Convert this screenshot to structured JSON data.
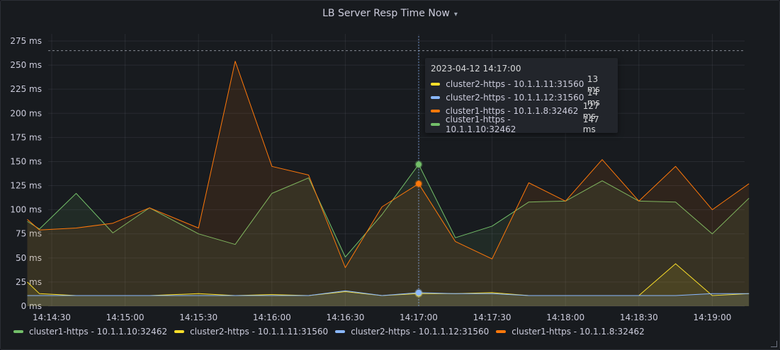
{
  "panel": {
    "title": "LB Server Resp Time Now"
  },
  "tooltip": {
    "time": "2023-04-12 14:17:00",
    "rows": [
      {
        "name": "cluster2-https - 10.1.1.11:31560",
        "value": "13 ms",
        "color": "#fade2a"
      },
      {
        "name": "cluster2-https - 10.1.1.12:31560",
        "value": "14 ms",
        "color": "#8ab8ff"
      },
      {
        "name": "cluster1-https - 10.1.1.8:32462",
        "value": "127 ms",
        "color": "#ff780a"
      },
      {
        "name": "cluster1-https - 10.1.1.10:32462",
        "value": "147 ms",
        "color": "#73bf69"
      }
    ]
  },
  "legend": [
    {
      "label": "cluster1-https - 10.1.1.10:32462",
      "color": "#73bf69"
    },
    {
      "label": "cluster2-https - 10.1.1.11:31560",
      "color": "#fade2a"
    },
    {
      "label": "cluster2-https - 10.1.1.12:31560",
      "color": "#8ab8ff"
    },
    {
      "label": "cluster1-https - 10.1.1.8:32462",
      "color": "#ff780a"
    }
  ],
  "chart_data": {
    "type": "area",
    "ylim": [
      0,
      275
    ],
    "yticks": [
      0,
      25,
      50,
      75,
      100,
      125,
      150,
      175,
      200,
      225,
      250,
      275
    ],
    "ytick_labels": [
      "0 ms",
      "25 ms",
      "50 ms",
      "75 ms",
      "100 ms",
      "125 ms",
      "150 ms",
      "175 ms",
      "200 ms",
      "225 ms",
      "250 ms",
      "275 ms"
    ],
    "xticks": [
      "14:14:30",
      "14:15:00",
      "14:15:30",
      "14:16:00",
      "14:16:30",
      "14:17:00",
      "14:17:30",
      "14:18:00",
      "14:18:30",
      "14:19:00"
    ],
    "x": [
      "14:14:20",
      "14:14:25",
      "14:14:40",
      "14:14:55",
      "14:15:10",
      "14:15:30",
      "14:15:45",
      "14:16:00",
      "14:16:15",
      "14:16:30",
      "14:16:45",
      "14:17:00",
      "14:17:15",
      "14:17:30",
      "14:17:45",
      "14:18:00",
      "14:18:15",
      "14:18:30",
      "14:18:45",
      "14:19:00",
      "14:19:15"
    ],
    "hover_x": "14:17:00",
    "threshold": 265,
    "grid": true,
    "legend_position": "bottom-left",
    "series": [
      {
        "name": "cluster1-https - 10.1.1.10:32462",
        "color": "#73bf69",
        "values": [
          88,
          80,
          117,
          76,
          102,
          75,
          64,
          117,
          133,
          51,
          95,
          147,
          71,
          83,
          108,
          109,
          130,
          109,
          108,
          75,
          112
        ]
      },
      {
        "name": "cluster2-https - 10.1.1.11:31560",
        "color": "#fade2a",
        "values": [
          25,
          13,
          11,
          11,
          11,
          13,
          11,
          12,
          11,
          15,
          11,
          13,
          13,
          14,
          11,
          11,
          11,
          11,
          44,
          11,
          13
        ]
      },
      {
        "name": "cluster2-https - 10.1.1.12:31560",
        "color": "#8ab8ff",
        "values": [
          11,
          11,
          11,
          11,
          11,
          11,
          11,
          11,
          11,
          16,
          11,
          14,
          13,
          13,
          11,
          11,
          11,
          11,
          11,
          13,
          13
        ]
      },
      {
        "name": "cluster1-https - 10.1.1.8:32462",
        "color": "#ff780a",
        "values": [
          90,
          79,
          81,
          86,
          102,
          81,
          254,
          145,
          136,
          40,
          103,
          127,
          67,
          49,
          128,
          109,
          152,
          109,
          145,
          100,
          127
        ]
      }
    ]
  }
}
